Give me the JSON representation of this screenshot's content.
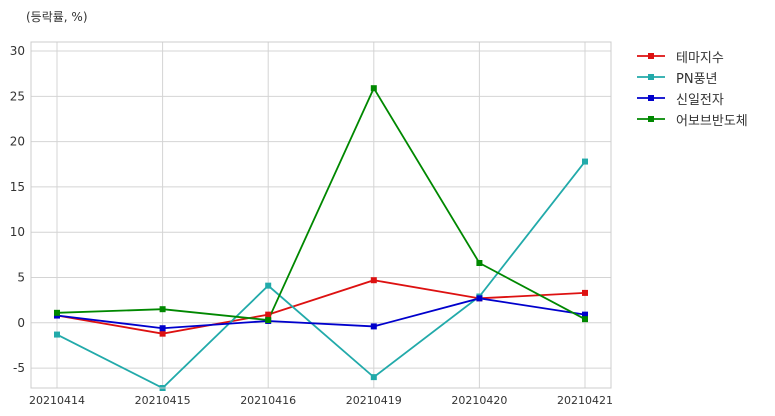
{
  "chart_data": {
    "type": "line",
    "unit_label": "(등락률, %)",
    "x": [
      "20210414",
      "20210415",
      "20210416",
      "20210419",
      "20210420",
      "20210421"
    ],
    "series": [
      {
        "name": "테마지수",
        "color": "#dd1111",
        "values": [
          0.8,
          -1.2,
          0.9,
          4.7,
          2.7,
          3.3
        ]
      },
      {
        "name": "PN풍년",
        "color": "#22aaaa",
        "values": [
          -1.3,
          -7.2,
          4.1,
          -6.0,
          2.9,
          17.8
        ]
      },
      {
        "name": "신일전자",
        "color": "#0000cc",
        "values": [
          0.8,
          -0.6,
          0.2,
          -0.4,
          2.7,
          0.9
        ]
      },
      {
        "name": "어보브반도체",
        "color": "#008800",
        "values": [
          1.1,
          1.5,
          0.3,
          25.9,
          6.6,
          0.4
        ]
      }
    ],
    "ylim": [
      -7.2,
      31
    ],
    "yticks": [
      -5,
      0,
      5,
      10,
      15,
      20,
      25,
      30
    ],
    "grid": true,
    "legend": "right"
  }
}
